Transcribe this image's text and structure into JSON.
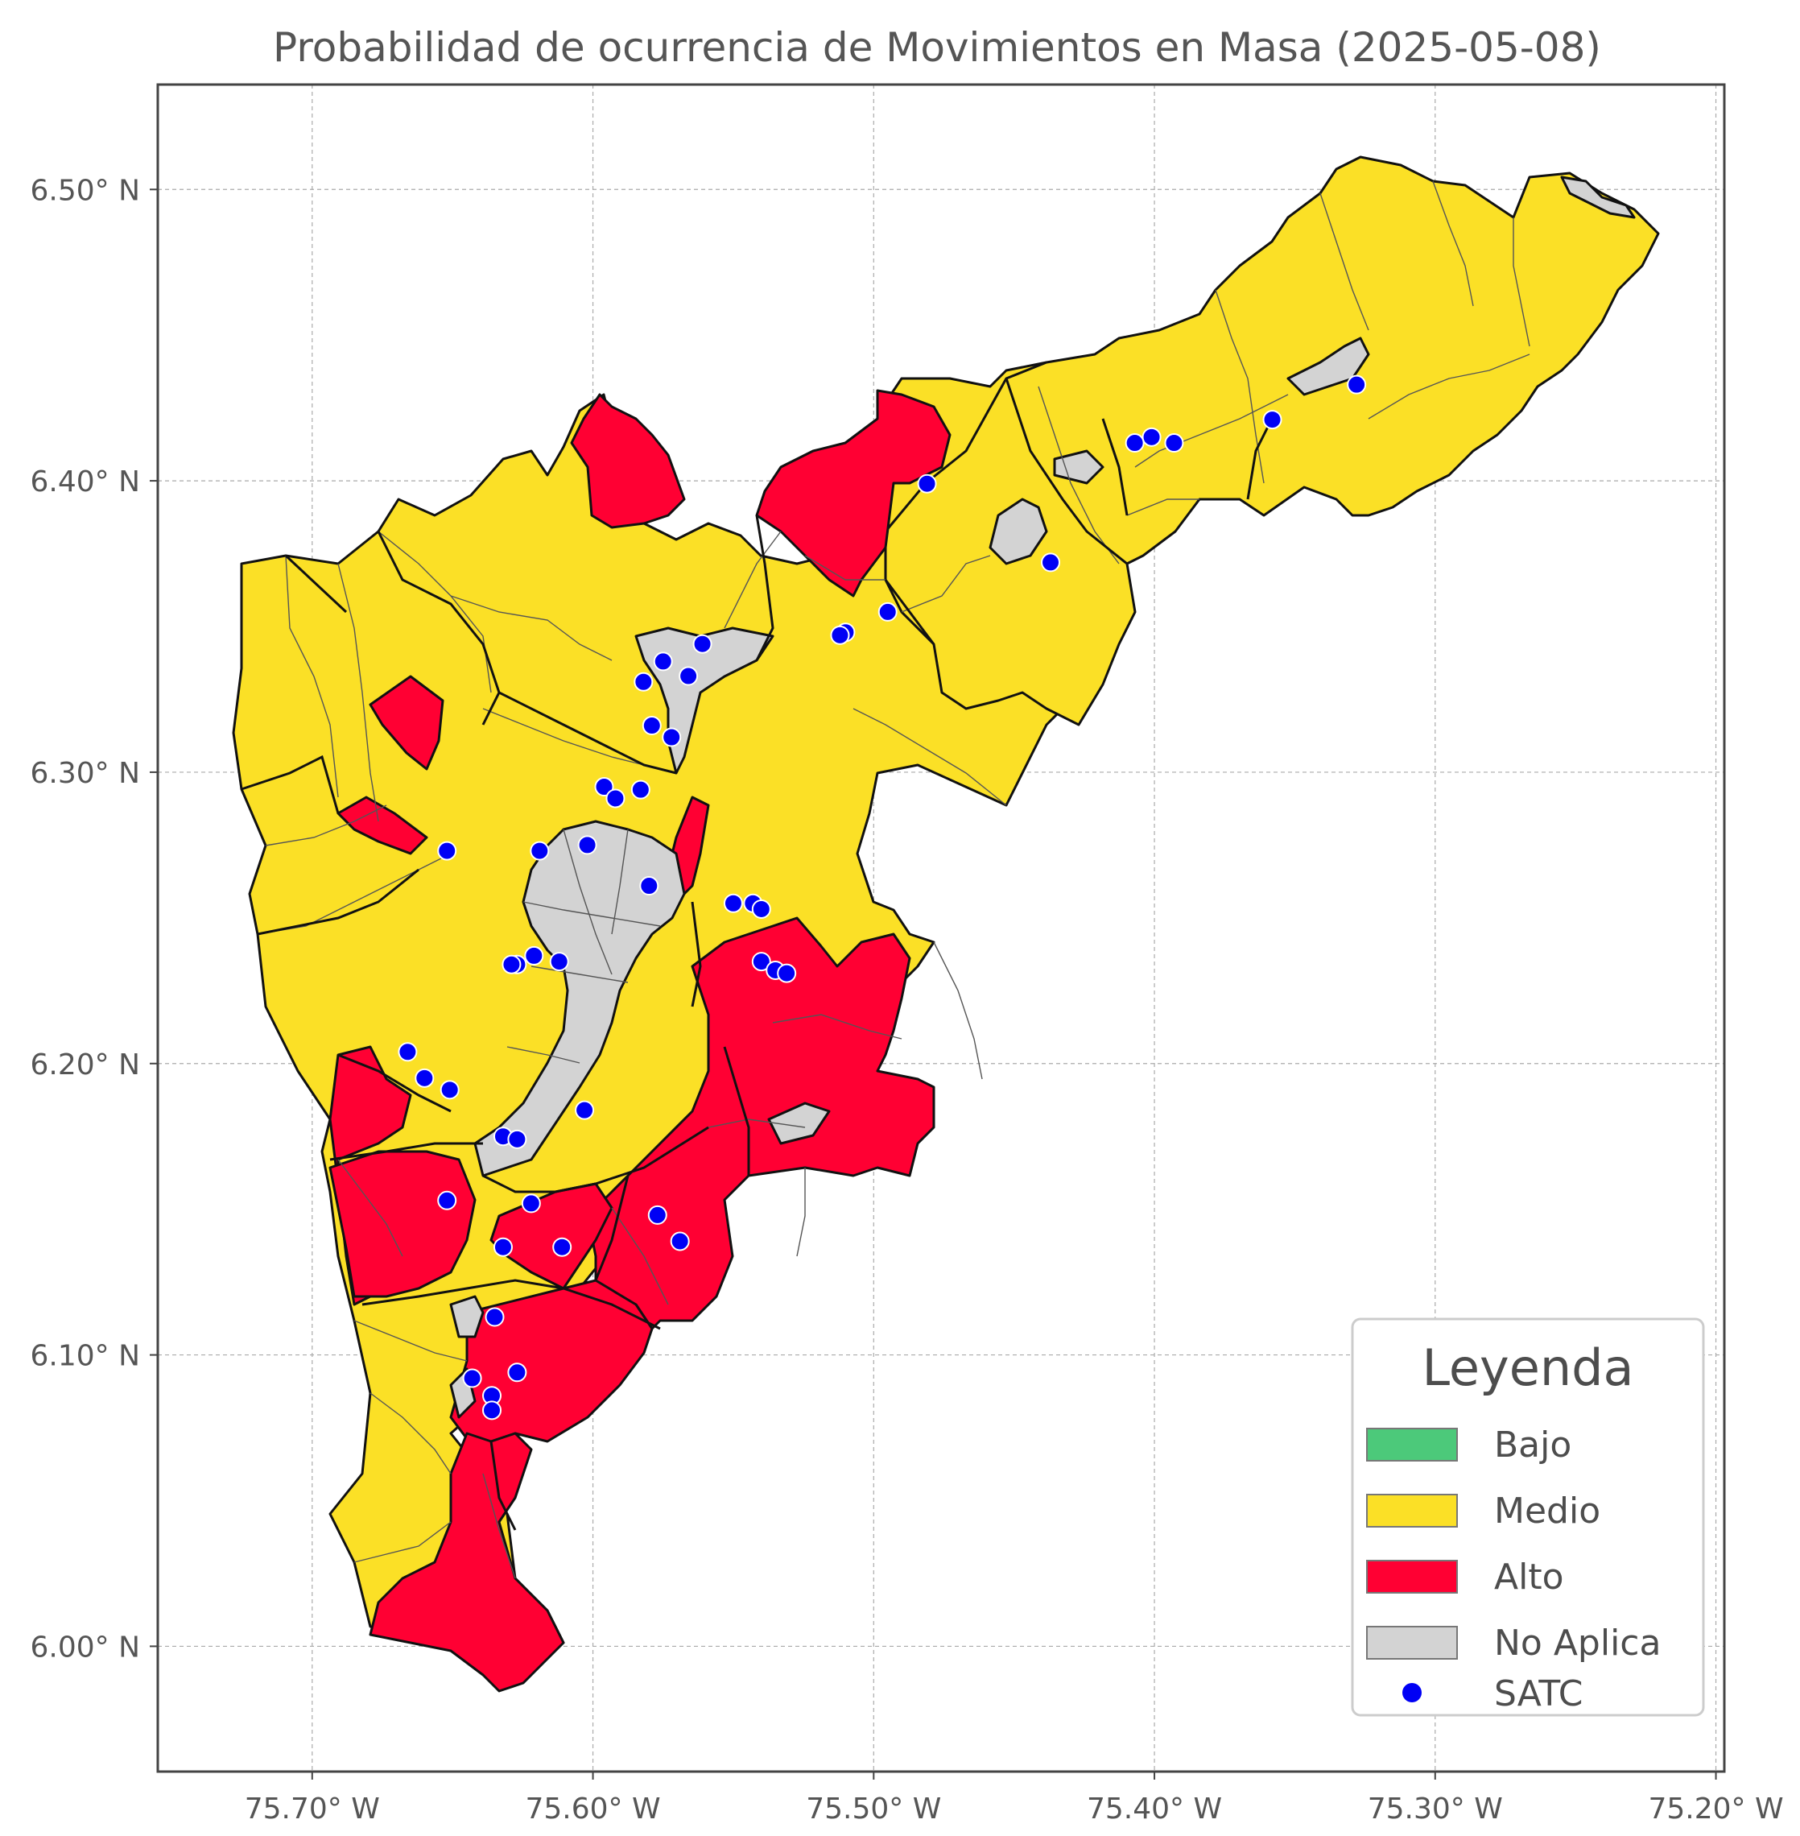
{
  "title": "Probabilidad de ocurrencia de Movimientos en Masa (2025-05-08)",
  "axes": {
    "lon_range": [
      -75.755,
      -75.197
    ],
    "lat_range": [
      5.957,
      6.536
    ],
    "x_ticks": [
      {
        "value": -75.7,
        "label": "75.70° W"
      },
      {
        "value": -75.6,
        "label": "75.60° W"
      },
      {
        "value": -75.5,
        "label": "75.50° W"
      },
      {
        "value": -75.4,
        "label": "75.40° W"
      },
      {
        "value": -75.3,
        "label": "75.30° W"
      },
      {
        "value": -75.2,
        "label": "75.20° W"
      }
    ],
    "y_ticks": [
      {
        "value": 6.5,
        "label": "6.50° N"
      },
      {
        "value": 6.4,
        "label": "6.40° N"
      },
      {
        "value": 6.3,
        "label": "6.30° N"
      },
      {
        "value": 6.2,
        "label": "6.20° N"
      },
      {
        "value": 6.1,
        "label": "6.10° N"
      },
      {
        "value": 6.0,
        "label": "6.00° N"
      }
    ],
    "grid": true
  },
  "colors": {
    "Bajo": "#4cc97a",
    "Medio": "#fbe026",
    "Alto": "#ff0033",
    "No Aplica": "#d3d3d3",
    "SATC": "#0000f5"
  },
  "legend": {
    "title": "Leyenda",
    "position": "bottom-right",
    "items": [
      {
        "label": "Bajo",
        "kind": "patch",
        "color": "#4cc97a"
      },
      {
        "label": "Medio",
        "kind": "patch",
        "color": "#fbe026"
      },
      {
        "label": "Alto",
        "kind": "patch",
        "color": "#ff0033"
      },
      {
        "label": "No Aplica",
        "kind": "patch",
        "color": "#d3d3d3"
      },
      {
        "label": "SATC",
        "kind": "marker",
        "color": "#0000f5"
      }
    ]
  },
  "satc_stations": [
    [
      -75.328,
      6.433
    ],
    [
      -75.358,
      6.421
    ],
    [
      -75.393,
      6.413
    ],
    [
      -75.401,
      6.415
    ],
    [
      -75.407,
      6.413
    ],
    [
      -75.481,
      6.399
    ],
    [
      -75.437,
      6.372
    ],
    [
      -75.495,
      6.355
    ],
    [
      -75.51,
      6.348
    ],
    [
      -75.512,
      6.347
    ],
    [
      -75.561,
      6.344
    ],
    [
      -75.566,
      6.333
    ],
    [
      -75.575,
      6.338
    ],
    [
      -75.582,
      6.331
    ],
    [
      -75.579,
      6.316
    ],
    [
      -75.572,
      6.312
    ],
    [
      -75.596,
      6.295
    ],
    [
      -75.592,
      6.291
    ],
    [
      -75.583,
      6.294
    ],
    [
      -75.652,
      6.273
    ],
    [
      -75.619,
      6.273
    ],
    [
      -75.602,
      6.275
    ],
    [
      -75.58,
      6.261
    ],
    [
      -75.55,
      6.255
    ],
    [
      -75.543,
      6.255
    ],
    [
      -75.54,
      6.253
    ],
    [
      -75.54,
      6.235
    ],
    [
      -75.535,
      6.232
    ],
    [
      -75.531,
      6.231
    ],
    [
      -75.621,
      6.237
    ],
    [
      -75.612,
      6.235
    ],
    [
      -75.627,
      6.234
    ],
    [
      -75.629,
      6.234
    ],
    [
      -75.666,
      6.204
    ],
    [
      -75.66,
      6.195
    ],
    [
      -75.651,
      6.191
    ],
    [
      -75.603,
      6.184
    ],
    [
      -75.632,
      6.175
    ],
    [
      -75.627,
      6.174
    ],
    [
      -75.652,
      6.153
    ],
    [
      -75.622,
      6.152
    ],
    [
      -75.577,
      6.148
    ],
    [
      -75.569,
      6.139
    ],
    [
      -75.611,
      6.137
    ],
    [
      -75.632,
      6.137
    ],
    [
      -75.635,
      6.113
    ],
    [
      -75.643,
      6.092
    ],
    [
      -75.627,
      6.094
    ],
    [
      -75.636,
      6.086
    ],
    [
      -75.636,
      6.081
    ]
  ]
}
